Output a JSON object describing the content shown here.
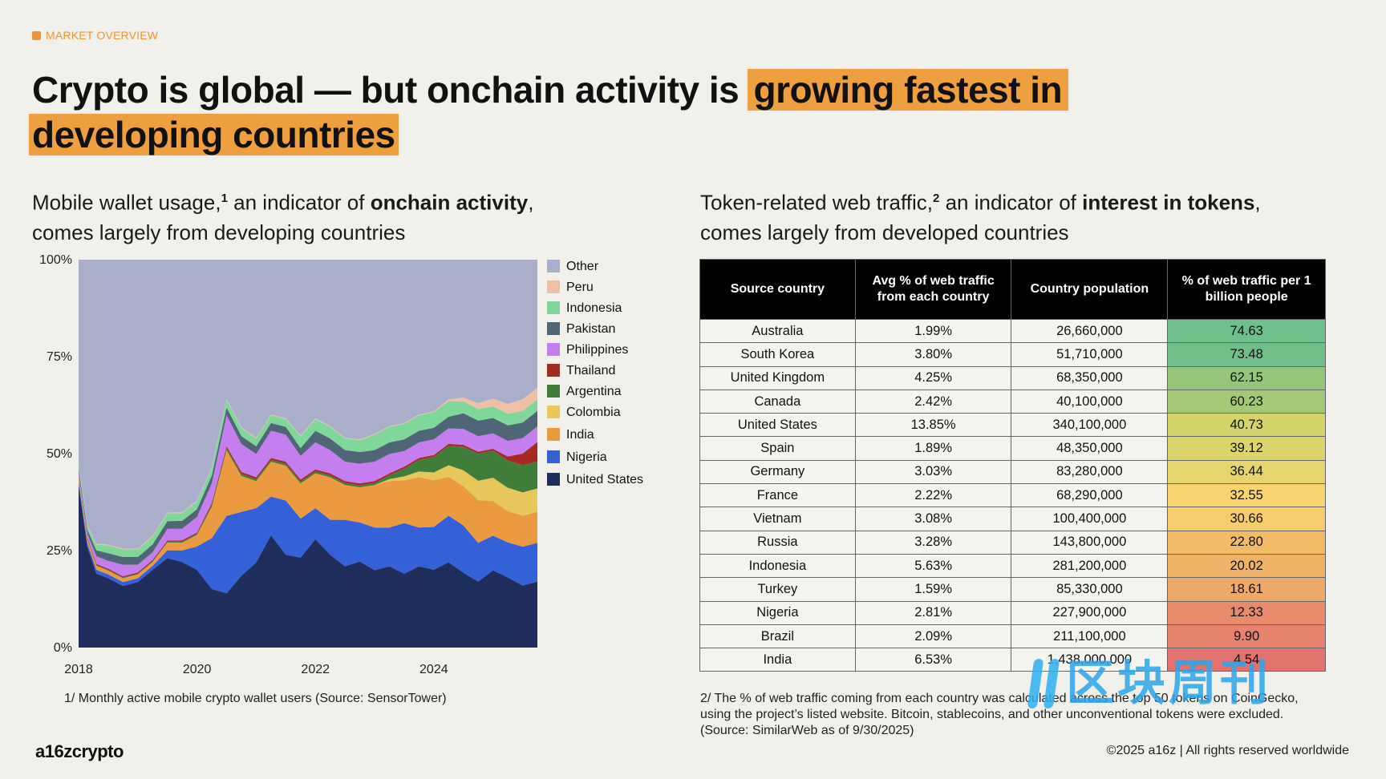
{
  "header": {
    "eyebrow": "MARKET OVERVIEW",
    "headline_plain": "Crypto is global — but onchain activity is ",
    "headline_highlight_1": "growing fastest in",
    "headline_highlight_2": "developing countries",
    "highlight_color": "#eea040"
  },
  "left": {
    "subhead_1": "Mobile wallet usage,",
    "subhead_sup": "1",
    "subhead_2": " an indicator of ",
    "subhead_bold": "onchain activity",
    "subhead_3": ",",
    "subhead_4": "comes largely from developing countries",
    "footnote": "1/ Monthly active mobile crypto wallet users (Source: SensorTower)"
  },
  "right": {
    "subhead_1": "Token-related web traffic,",
    "subhead_sup": "2",
    "subhead_2": " an indicator of ",
    "subhead_bold": "interest in tokens",
    "subhead_3": ",",
    "subhead_4": "comes largely from developed countries",
    "footnote": "2/ The % of web traffic coming from each country was calculated across the top 50 tokens on CoinGecko, using the project’s listed website. Bitcoin, stablecoins, and other unconventional tokens were excluded. (Source: SimilarWeb as of 9/30/2025)"
  },
  "footer": {
    "brand": "a16zcrypto",
    "copyright": "©2025 a16z | All rights reserved worldwide"
  },
  "watermark": {
    "text": "区块周刊"
  },
  "chart_data": {
    "type": "area",
    "stacked": true,
    "normalized": true,
    "y_tick_labels": [
      "0%",
      "25%",
      "50%",
      "75%",
      "100%"
    ],
    "ylim": [
      0,
      100
    ],
    "x_tick_labels": [
      "2018",
      "2020",
      "2022",
      "2024"
    ],
    "xlim": [
      2018.0,
      2025.75
    ],
    "x": [
      2018.0,
      2018.15,
      2018.3,
      2018.5,
      2018.75,
      2019.0,
      2019.25,
      2019.5,
      2019.75,
      2020.0,
      2020.25,
      2020.5,
      2020.75,
      2021.0,
      2021.25,
      2021.5,
      2021.75,
      2022.0,
      2022.25,
      2022.5,
      2022.75,
      2023.0,
      2023.25,
      2023.5,
      2023.75,
      2024.0,
      2024.25,
      2024.5,
      2024.75,
      2025.0,
      2025.25,
      2025.5,
      2025.75
    ],
    "grid": false,
    "legend_position": "right",
    "series": [
      {
        "name": "United States",
        "color": "#1e2d5c",
        "values": [
          42,
          26,
          19,
          18,
          16,
          17,
          20,
          23,
          22,
          20,
          15,
          14,
          18,
          22,
          29,
          24,
          23,
          28,
          24,
          21,
          22,
          20,
          21,
          19,
          21,
          20,
          22,
          19,
          17,
          20,
          18,
          16,
          17
        ]
      },
      {
        "name": "Nigeria",
        "color": "#3460d8",
        "values": [
          1,
          1,
          1,
          1,
          1,
          1,
          1,
          2,
          3,
          6,
          13,
          20,
          16,
          14,
          10,
          14,
          10,
          8,
          9,
          12,
          10,
          11,
          10,
          13,
          10,
          11,
          12,
          12,
          10,
          9,
          9,
          10,
          10
        ]
      },
      {
        "name": "India",
        "color": "#eb9a3f",
        "values": [
          1,
          1,
          1,
          1,
          1,
          1,
          1,
          2,
          2,
          3,
          8,
          17,
          9,
          7,
          9,
          9,
          9,
          9,
          11,
          9,
          9,
          11,
          12,
          11,
          13,
          12,
          10,
          10,
          11,
          9,
          8,
          8,
          8
        ]
      },
      {
        "name": "Colombia",
        "color": "#e7c75a",
        "values": [
          0,
          0,
          0,
          0,
          0,
          0,
          0,
          0,
          0,
          0,
          0,
          0,
          0,
          0,
          0,
          0,
          0,
          0,
          0,
          0,
          0,
          0,
          0.5,
          1,
          1.5,
          2,
          3,
          4,
          5,
          6,
          6,
          6,
          6
        ]
      },
      {
        "name": "Argentina",
        "color": "#3f7d3a",
        "values": [
          0.2,
          0.2,
          0.2,
          0.2,
          0.2,
          0.2,
          0.2,
          0.2,
          0.3,
          0.3,
          0.5,
          0.5,
          0.5,
          0.5,
          0.5,
          0.5,
          0.5,
          0.5,
          0.5,
          0.5,
          0.5,
          0.5,
          1,
          2,
          3,
          4,
          5,
          6,
          7,
          7,
          7,
          7,
          7
        ]
      },
      {
        "name": "Thailand",
        "color": "#a82822",
        "values": [
          0.3,
          0.3,
          0.3,
          0.3,
          0.3,
          0.3,
          0.3,
          0.3,
          0.3,
          0.3,
          0.5,
          0.5,
          0.5,
          0.5,
          0.5,
          0.5,
          0.5,
          0.5,
          0.5,
          0.5,
          0.5,
          0.5,
          0.5,
          0.5,
          0.5,
          0.5,
          0.5,
          0.5,
          0.5,
          0.5,
          1,
          3,
          5
        ]
      },
      {
        "name": "Philippines",
        "color": "#c47ef0",
        "values": [
          1,
          1,
          2,
          2,
          3,
          2,
          2,
          3,
          3,
          4,
          5,
          8,
          7,
          6,
          7,
          7,
          6,
          7,
          6,
          5,
          5,
          5,
          5,
          4,
          4,
          4,
          4,
          4,
          4,
          4,
          4,
          4,
          4
        ]
      },
      {
        "name": "Pakistan",
        "color": "#4f6676",
        "values": [
          1,
          1,
          1.5,
          2,
          2,
          2,
          2,
          2,
          2,
          2,
          2,
          2,
          2,
          2,
          2,
          2,
          2,
          3,
          3,
          3,
          3,
          3,
          3,
          3,
          3,
          3,
          3,
          4,
          4,
          4,
          4,
          4,
          4
        ]
      },
      {
        "name": "Indonesia",
        "color": "#7fd89a",
        "values": [
          1,
          1,
          1.5,
          2,
          2,
          2,
          2,
          2,
          2,
          2,
          2,
          2,
          2,
          2,
          2,
          2,
          3,
          3,
          3,
          3,
          3,
          4,
          4,
          4,
          4,
          4,
          4,
          3,
          3,
          3,
          3,
          3,
          3
        ]
      },
      {
        "name": "Peru",
        "color": "#f0c0a6",
        "values": [
          0.2,
          0.2,
          0.2,
          0.2,
          0.2,
          0.2,
          0.2,
          0.2,
          0.2,
          0.2,
          0.2,
          0.2,
          0.2,
          0.2,
          0.2,
          0.2,
          0.2,
          0.2,
          0.2,
          0.2,
          0.2,
          0.2,
          0.2,
          0.2,
          0.2,
          0.2,
          0.5,
          1,
          1.5,
          2,
          2.5,
          3,
          3
        ]
      },
      {
        "name": "Other",
        "color": "#a9afcb",
        "values": [
          53,
          69,
          73,
          74,
          75,
          75,
          71,
          65,
          65,
          62,
          53,
          36,
          42,
          46,
          40,
          41,
          45,
          41,
          43,
          46,
          46,
          45,
          43,
          42,
          40,
          39,
          36,
          35,
          37,
          36,
          37,
          36,
          33
        ]
      }
    ],
    "legend": [
      "Other",
      "Peru",
      "Indonesia",
      "Pakistan",
      "Philippines",
      "Thailand",
      "Argentina",
      "Colombia",
      "India",
      "Nigeria",
      "United States"
    ]
  },
  "table": {
    "headers": [
      "Source country",
      "Avg % of web traffic from each country",
      "Country population",
      "% of web traffic per 1 billion people"
    ],
    "rows": [
      {
        "country": "Australia",
        "share": "1.99%",
        "population": "26,660,000",
        "per_billion": "74.63",
        "color": "#6fbf8b"
      },
      {
        "country": "South Korea",
        "share": "3.80%",
        "population": "51,710,000",
        "per_billion": "73.48",
        "color": "#72be88"
      },
      {
        "country": "United Kingdom",
        "share": "4.25%",
        "population": "68,350,000",
        "per_billion": "62.15",
        "color": "#94c57b"
      },
      {
        "country": "Canada",
        "share": "2.42%",
        "population": "40,100,000",
        "per_billion": "60.23",
        "color": "#a4c876"
      },
      {
        "country": "United States",
        "share": "13.85%",
        "population": "340,100,000",
        "per_billion": "40.73",
        "color": "#d5d46a"
      },
      {
        "country": "Spain",
        "share": "1.89%",
        "population": "48,350,000",
        "per_billion": "39.12",
        "color": "#dcd46a"
      },
      {
        "country": "Germany",
        "share": "3.03%",
        "population": "83,280,000",
        "per_billion": "36.44",
        "color": "#e6d56c"
      },
      {
        "country": "France",
        "share": "2.22%",
        "population": "68,290,000",
        "per_billion": "32.55",
        "color": "#f8d46e"
      },
      {
        "country": "Vietnam",
        "share": "3.08%",
        "population": "100,400,000",
        "per_billion": "30.66",
        "color": "#f6cd6c"
      },
      {
        "country": "Russia",
        "share": "3.28%",
        "population": "143,800,000",
        "per_billion": "22.80",
        "color": "#f2bb67"
      },
      {
        "country": "Indonesia",
        "share": "5.63%",
        "population": "281,200,000",
        "per_billion": "20.02",
        "color": "#f0b266"
      },
      {
        "country": "Turkey",
        "share": "1.59%",
        "population": "85,330,000",
        "per_billion": "18.61",
        "color": "#eea86a"
      },
      {
        "country": "Nigeria",
        "share": "2.81%",
        "population": "227,900,000",
        "per_billion": "12.33",
        "color": "#e88b6d"
      },
      {
        "country": "Brazil",
        "share": "2.09%",
        "population": "211,100,000",
        "per_billion": "9.90",
        "color": "#e7826e"
      },
      {
        "country": "India",
        "share": "6.53%",
        "population": "1,438,000,000",
        "per_billion": "4.54",
        "color": "#e3716e"
      }
    ]
  }
}
